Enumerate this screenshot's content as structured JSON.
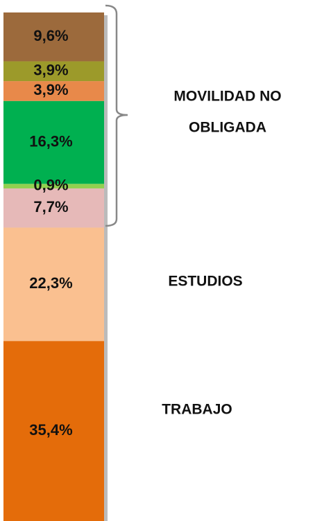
{
  "chart_data": {
    "type": "bar",
    "stacked": true,
    "ylim": [
      0,
      100
    ],
    "series": [
      {
        "color": "#e46c0a",
        "values": [
          35.4
        ],
        "value_labels": [
          "35,4%"
        ]
      },
      {
        "color": "#fac090",
        "values": [
          22.3
        ],
        "value_labels": [
          "22,3%"
        ]
      },
      {
        "color": "#e6b9b8",
        "values": [
          7.7
        ],
        "value_labels": [
          "7,7%"
        ]
      },
      {
        "color": "#92d050",
        "values": [
          0.9
        ],
        "value_labels": [
          "0,9%"
        ]
      },
      {
        "color": "#00b050",
        "values": [
          16.3
        ],
        "value_labels": [
          "16,3%"
        ]
      },
      {
        "color": "#e8894a",
        "values": [
          3.9
        ],
        "value_labels": [
          "3,9%"
        ]
      },
      {
        "color": "#9c9a2a",
        "values": [
          3.9
        ],
        "value_labels": [
          "3,9%"
        ]
      },
      {
        "color": "#9c6a3c",
        "values": [
          9.6
        ],
        "value_labels": [
          "9,6%"
        ]
      }
    ],
    "annotations": [
      "MOVILIDAD NO",
      "OBLIGADA",
      "ESTUDIOS",
      "TRABAJO"
    ]
  }
}
